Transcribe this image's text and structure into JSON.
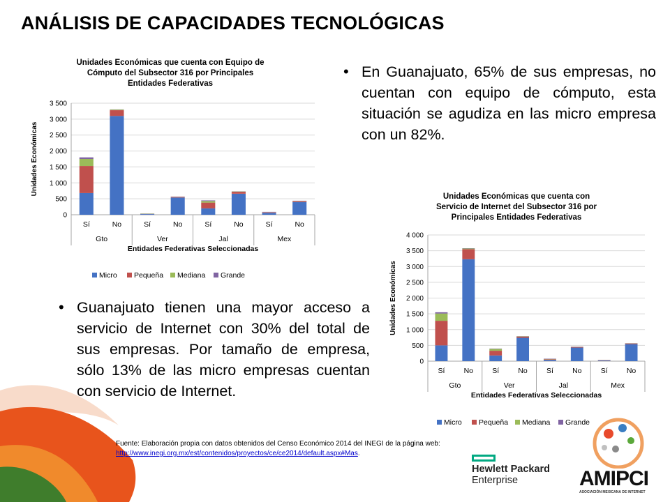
{
  "slide": {
    "title": "ANÁLISIS DE CAPACIDADES TECNOLÓGICAS",
    "bullets": [
      "En Guanajuato, 65% de sus empresas, no cuentan con equipo de cómputo, esta situación se agudiza en las micro empresa con un 82%.",
      "Guanajuato tienen una mayor acceso a servicio de Internet con 30% del total de sus empresas. Por tamaño de empresa, sólo 13% de las micro empresas cuentan con servicio de Internet."
    ],
    "source_text": "Fuente: Elaboración propia con datos obtenidos del Censo Económico 2014 del INEGI de la página web:",
    "source_link": "http://www.inegi.org.mx/est/contenidos/proyectos/ce/ce2014/default.aspx#Mas",
    "source_end": ".",
    "logos": {
      "hp_line1": "Hewlett Packard",
      "hp_line2": "Enterprise",
      "amipci_name": "AMIPCI",
      "amipci_tagline": "ASOCIACIÓN MEXICANA DE INTERNET"
    },
    "colors": {
      "micro": "#4472c4",
      "pequena": "#c0504d",
      "mediana": "#9bbb59",
      "grande": "#8064a2",
      "deco_orange": "#e8541c",
      "deco_green": "#3f7d2c"
    }
  },
  "chart_data": [
    {
      "type": "bar",
      "stacked": true,
      "title": "Unidades Económicas que cuenta con Equipo de Cómputo del Subsector 316 por Principales Entidades Federativas",
      "xlabel": "Entidades Federativas Seleccionadas",
      "ylabel": "Unidades Económicas",
      "ylim": [
        0,
        3500
      ],
      "yticks": [
        0,
        500,
        1000,
        1500,
        2000,
        2500,
        3000,
        3500
      ],
      "ytick_labels": [
        "0",
        "500",
        "1 000",
        "1 500",
        "2 000",
        "2 500",
        "3 000",
        "3 500"
      ],
      "categories": [
        "Sí",
        "No",
        "Sí",
        "No",
        "Sí",
        "No",
        "Sí",
        "No"
      ],
      "groups": [
        "Gto",
        "Ver",
        "Jal",
        "Mex"
      ],
      "series": [
        {
          "name": "Micro",
          "values": [
            680,
            3100,
            20,
            540,
            200,
            660,
            60,
            400
          ]
        },
        {
          "name": "Pequeña",
          "values": [
            850,
            180,
            5,
            20,
            180,
            60,
            15,
            30
          ]
        },
        {
          "name": "Mediana",
          "values": [
            220,
            20,
            10,
            5,
            50,
            10,
            5,
            5
          ]
        },
        {
          "name": "Grande",
          "values": [
            50,
            5,
            5,
            5,
            20,
            5,
            10,
            5
          ]
        }
      ],
      "legend": "bottom",
      "grid": true
    },
    {
      "type": "bar",
      "stacked": true,
      "title": "Unidades Económicas que cuenta con Servicio de Internet del Subsector 316 por Principales Entidades Federativas",
      "xlabel": "Entidades Federativas Seleccionadas",
      "ylabel": "Unidades Económicas",
      "ylim": [
        0,
        4000
      ],
      "yticks": [
        0,
        500,
        1000,
        1500,
        2000,
        2500,
        3000,
        3500,
        4000
      ],
      "ytick_labels": [
        "0",
        "500",
        "1 000",
        "1 500",
        "2 000",
        "2 500",
        "3 000",
        "3 500",
        "4 000"
      ],
      "categories": [
        "Sí",
        "No",
        "Sí",
        "No",
        "Sí",
        "No",
        "Sí",
        "No"
      ],
      "groups": [
        "Gto",
        "Ver",
        "Jal",
        "Mex"
      ],
      "series": [
        {
          "name": "Micro",
          "values": [
            500,
            3230,
            180,
            740,
            40,
            430,
            20,
            540
          ]
        },
        {
          "name": "Pequeña",
          "values": [
            780,
            320,
            150,
            40,
            20,
            20,
            10,
            20
          ]
        },
        {
          "name": "Mediana",
          "values": [
            230,
            20,
            60,
            10,
            10,
            5,
            5,
            5
          ]
        },
        {
          "name": "Grande",
          "values": [
            40,
            10,
            10,
            5,
            10,
            5,
            5,
            5
          ]
        }
      ],
      "legend": "bottom",
      "grid": true
    }
  ]
}
